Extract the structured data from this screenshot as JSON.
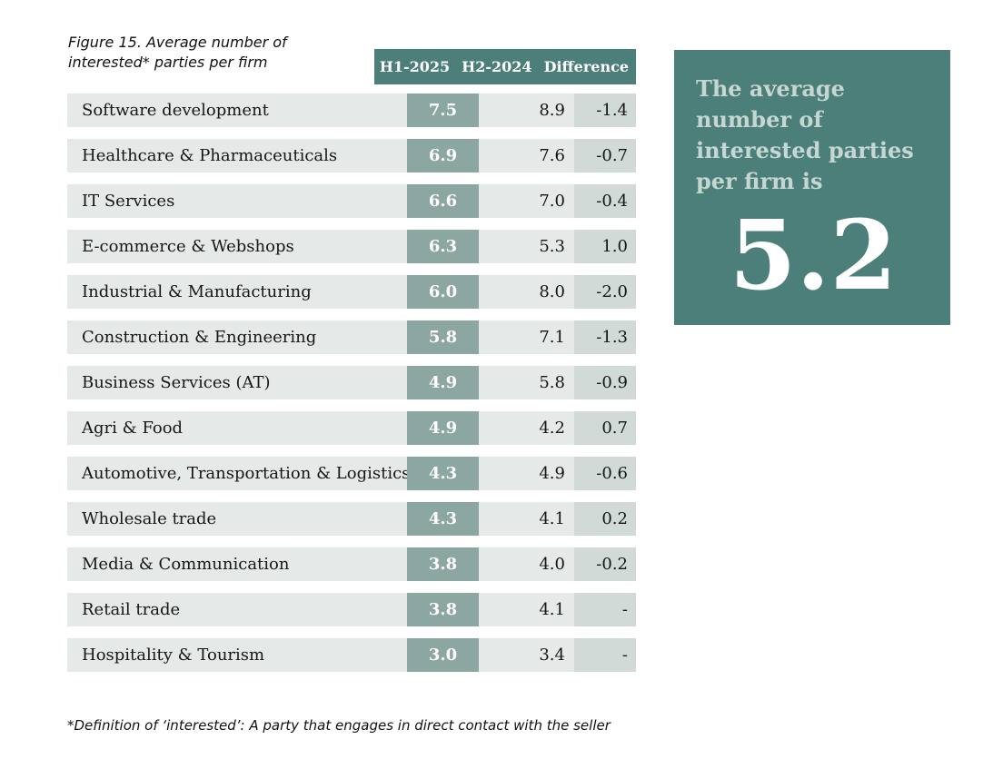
{
  "figure": {
    "title": "Figure 15. Average number of\ninterested* parties per firm",
    "footnote": "*Definition of ‘interested’: A party that engages in direct contact with the seller"
  },
  "table": {
    "columns": [
      "H1-2025",
      "H2-2024",
      "Difference"
    ],
    "rows": [
      {
        "label": "Software development",
        "h1_2025": "7.5",
        "h2_2024": "8.9",
        "difference": "-1.4"
      },
      {
        "label": "Healthcare & Pharmaceuticals",
        "h1_2025": "6.9",
        "h2_2024": "7.6",
        "difference": "-0.7"
      },
      {
        "label": "IT Services",
        "h1_2025": "6.6",
        "h2_2024": "7.0",
        "difference": "-0.4"
      },
      {
        "label": "E-commerce & Webshops",
        "h1_2025": "6.3",
        "h2_2024": "5.3",
        "difference": "1.0"
      },
      {
        "label": "Industrial & Manufacturing",
        "h1_2025": "6.0",
        "h2_2024": "8.0",
        "difference": "-2.0"
      },
      {
        "label": "Construction & Engineering",
        "h1_2025": "5.8",
        "h2_2024": "7.1",
        "difference": "-1.3"
      },
      {
        "label": "Business Services (AT)",
        "h1_2025": "4.9",
        "h2_2024": "5.8",
        "difference": "-0.9"
      },
      {
        "label": "Agri & Food",
        "h1_2025": "4.9",
        "h2_2024": "4.2",
        "difference": "0.7"
      },
      {
        "label": "Automotive, Transportation & Logistics",
        "h1_2025": "4.3",
        "h2_2024": "4.9",
        "difference": "-0.6"
      },
      {
        "label": "Wholesale trade",
        "h1_2025": "4.3",
        "h2_2024": "4.1",
        "difference": "0.2"
      },
      {
        "label": "Media & Communication",
        "h1_2025": "3.8",
        "h2_2024": "4.0",
        "difference": "-0.2"
      },
      {
        "label": "Retail trade",
        "h1_2025": "3.8",
        "h2_2024": "4.1",
        "difference": "-"
      },
      {
        "label": "Hospitality & Tourism",
        "h1_2025": "3.0",
        "h2_2024": "3.4",
        "difference": "-"
      }
    ]
  },
  "callout": {
    "text": "The average number of interested parties per firm is",
    "value": "5.2"
  },
  "colors": {
    "teal": "#4d7f7a",
    "sage": "#8ca6a1",
    "row_bg": "#e5e9e8",
    "diff_bg": "#d2dad8",
    "callout_text": "#c6d7d2"
  },
  "chart_data": {
    "type": "table",
    "title": "Figure 15. Average number of interested* parties per firm",
    "categories": [
      "Software development",
      "Healthcare & Pharmaceuticals",
      "IT Services",
      "E-commerce & Webshops",
      "Industrial & Manufacturing",
      "Construction & Engineering",
      "Business Services (AT)",
      "Agri & Food",
      "Automotive, Transportation & Logistics",
      "Wholesale trade",
      "Media & Communication",
      "Retail trade",
      "Hospitality & Tourism"
    ],
    "series": [
      {
        "name": "H1-2025",
        "values": [
          7.5,
          6.9,
          6.6,
          6.3,
          6.0,
          5.8,
          4.9,
          4.9,
          4.3,
          4.3,
          3.8,
          3.8,
          3.0
        ]
      },
      {
        "name": "H2-2024",
        "values": [
          8.9,
          7.6,
          7.0,
          5.3,
          8.0,
          7.1,
          5.8,
          4.2,
          4.9,
          4.1,
          4.0,
          4.1,
          3.4
        ]
      },
      {
        "name": "Difference",
        "values": [
          -1.4,
          -0.7,
          -0.4,
          1.0,
          -2.0,
          -1.3,
          -0.9,
          0.7,
          -0.6,
          0.2,
          -0.2,
          null,
          null
        ]
      }
    ],
    "annotations": [
      "The average number of interested parties per firm is 5.2"
    ],
    "footnote": "*Definition of ‘interested’: A party that engages in direct contact with the seller",
    "legend_position": "top",
    "grid": false
  }
}
